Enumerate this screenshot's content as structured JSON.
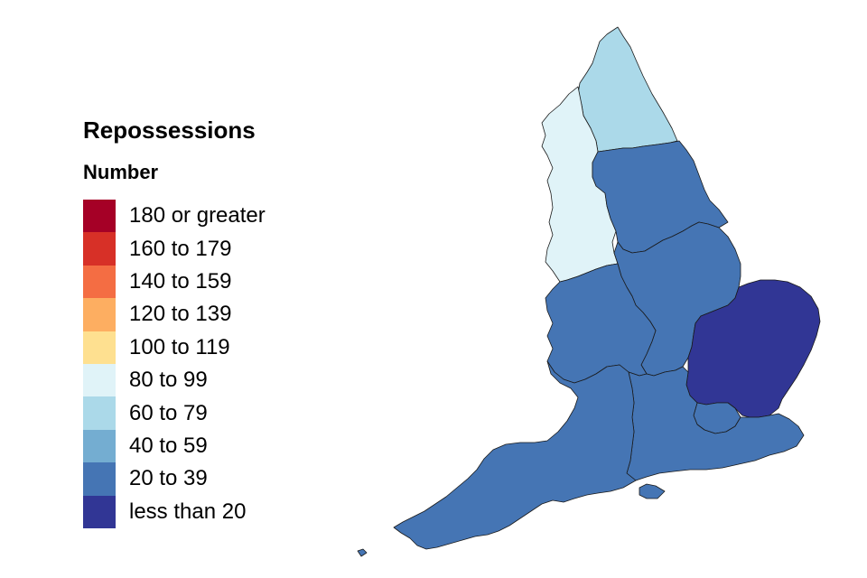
{
  "legend": {
    "title": "Repossessions",
    "subtitle": "Number",
    "bins": [
      {
        "label": "180 or greater",
        "color": "#a50026"
      },
      {
        "label": "160 to 179",
        "color": "#d73027"
      },
      {
        "label": "140 to 159",
        "color": "#f46d43"
      },
      {
        "label": "120 to 139",
        "color": "#fdae61"
      },
      {
        "label": "100 to 119",
        "color": "#fee090"
      },
      {
        "label": "80 to 99",
        "color": "#e0f3f8"
      },
      {
        "label": "60 to 79",
        "color": "#abd9e9"
      },
      {
        "label": "40 to 59",
        "color": "#74add1"
      },
      {
        "label": "20 to 39",
        "color": "#4575b4"
      },
      {
        "label": "less than 20",
        "color": "#313695"
      }
    ]
  },
  "map": {
    "regions": [
      {
        "id": "north-east",
        "bin": "60 to 79"
      },
      {
        "id": "north-west",
        "bin": "80 to 99"
      },
      {
        "id": "yorkshire-and-the-humber",
        "bin": "20 to 39"
      },
      {
        "id": "east-midlands",
        "bin": "20 to 39"
      },
      {
        "id": "west-midlands",
        "bin": "20 to 39"
      },
      {
        "id": "east-of-england",
        "bin": "less than 20"
      },
      {
        "id": "london",
        "bin": "20 to 39"
      },
      {
        "id": "south-east",
        "bin": "20 to 39"
      },
      {
        "id": "south-west",
        "bin": "20 to 39"
      }
    ]
  }
}
